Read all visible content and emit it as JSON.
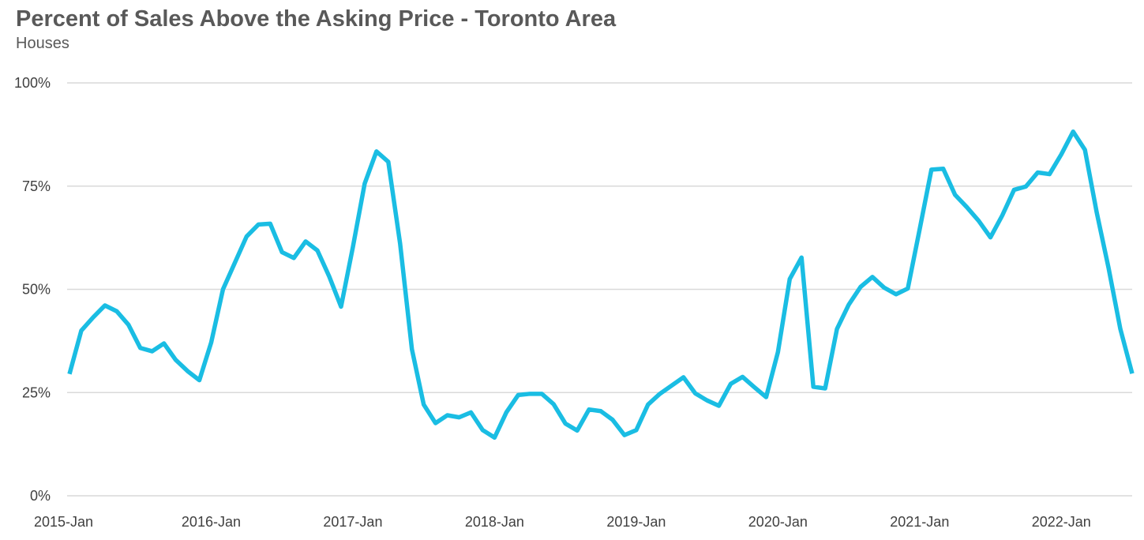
{
  "title": "Percent of Sales Above the Asking Price - Toronto Area",
  "subtitle": "Houses",
  "chart_data": {
    "type": "line",
    "title": "Percent of Sales Above the Asking Price - Toronto Area",
    "subtitle": "Houses",
    "xlabel": "",
    "ylabel": "",
    "x_start": "2015-Jan",
    "x_tick_labels": [
      "2015-Jan",
      "2016-Jan",
      "2017-Jan",
      "2018-Jan",
      "2019-Jan",
      "2020-Jan",
      "2021-Jan",
      "2022-Jan"
    ],
    "y_tick_labels": [
      "0%",
      "25%",
      "50%",
      "75%",
      "100%"
    ],
    "y_ticks": [
      0,
      25,
      50,
      75,
      100
    ],
    "ylim": [
      0,
      100
    ],
    "grid": true,
    "legend": "none",
    "line_color": "#1ABDE3",
    "grid_color": "#D9D9D9",
    "series": [
      {
        "values": [
          29.5,
          40,
          43.2,
          46.1,
          44.7,
          41.4,
          35.8,
          35,
          36.9,
          32.9,
          30.2,
          28,
          37.1,
          50,
          56.4,
          62.8,
          65.7,
          65.9,
          59,
          57.6,
          61.6,
          59.4,
          53.1,
          45.8,
          60.2,
          75.6,
          83.4,
          80.9,
          61.1,
          35.5,
          22.1,
          17.6,
          19.5,
          19,
          20.2,
          15.9,
          14.1,
          20.2,
          24.4,
          24.7,
          24.7,
          22.2,
          17.5,
          15.8,
          20.9,
          20.5,
          18.4,
          14.7,
          15.9,
          22.1,
          24.7,
          26.7,
          28.7,
          24.8,
          23.1,
          21.8,
          27.1,
          28.8,
          26.3,
          23.9,
          34.8,
          52.5,
          57.7,
          26.4,
          26,
          40.4,
          46.3,
          50.6,
          53,
          50.4,
          48.8,
          50.2,
          64.5,
          79,
          79.2,
          72.9,
          69.9,
          66.6,
          62.6,
          67.9,
          74.1,
          74.9,
          78.3,
          77.9,
          82.7,
          88.2,
          83.8,
          68.6,
          55.2,
          40.4,
          29.6
        ]
      }
    ]
  }
}
